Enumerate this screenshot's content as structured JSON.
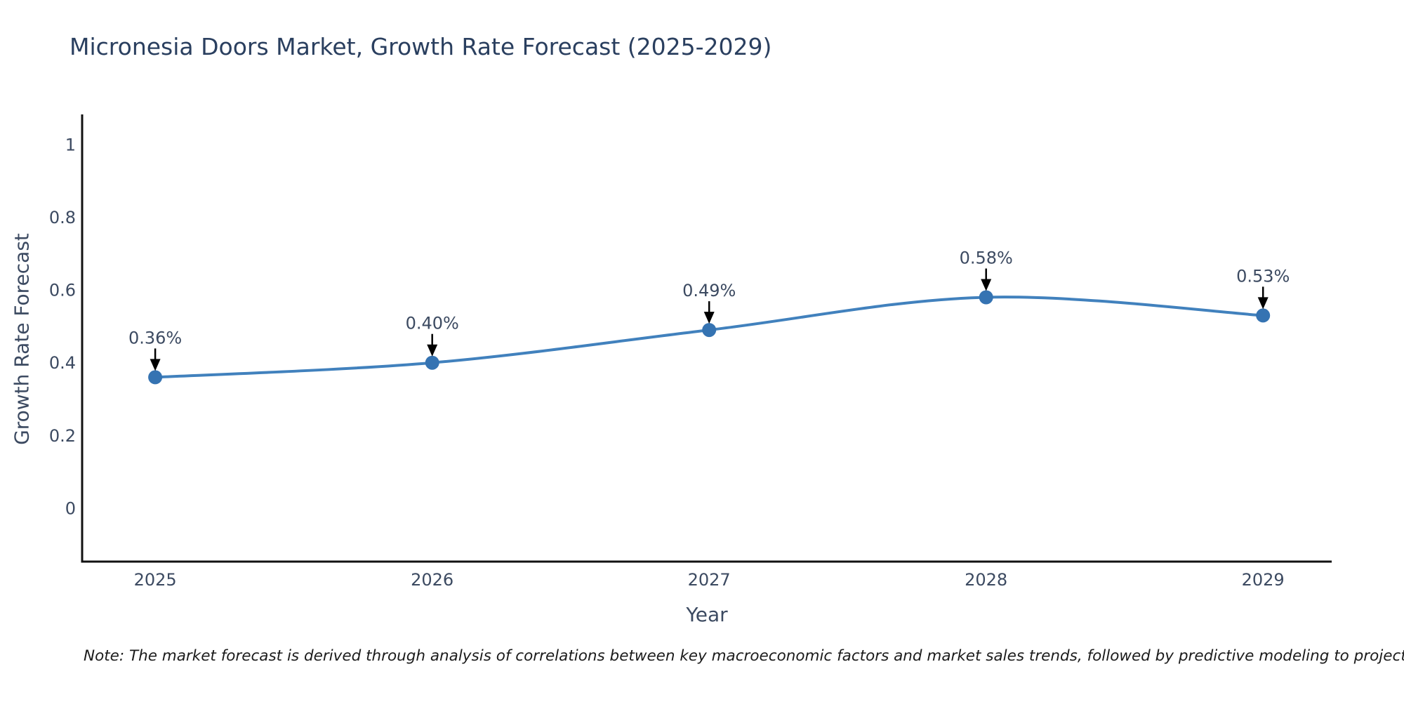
{
  "chart_data": {
    "type": "line",
    "title": "Micronesia Doors Market, Growth Rate Forecast (2025-2029)",
    "xlabel": "Year",
    "ylabel": "Growth Rate Forecast",
    "x": [
      2025,
      2026,
      2027,
      2028,
      2029
    ],
    "series": [
      {
        "name": "Growth Rate Forecast",
        "values": [
          0.36,
          0.4,
          0.49,
          0.58,
          0.53
        ]
      }
    ],
    "point_labels": [
      "0.36%",
      "0.40%",
      "0.49%",
      "0.58%",
      "0.53%"
    ],
    "x_tick_labels": [
      "2025",
      "2026",
      "2027",
      "2028",
      "2029"
    ],
    "y_tick_values": [
      0,
      0.2,
      0.4,
      0.6,
      0.8,
      1
    ],
    "y_tick_labels": [
      "0",
      "0.2",
      "0.4",
      "0.6",
      "0.8",
      "1"
    ],
    "xlim": [
      2024.736,
      2029.248
    ],
    "ylim": [
      -0.147,
      1.083
    ],
    "grid": false,
    "legend": "none",
    "line_shape": "spline",
    "colors": {
      "line": "#4181bd",
      "marker": "#3573b2",
      "arrow": "#000000",
      "axis_line": "#111111",
      "tick_text": "#3c4a61",
      "annotation_text": "#3c4a61",
      "title_text": "#2a3f5f",
      "note_text": "#1b1b1b"
    }
  },
  "note": {
    "text": "Note: The market forecast is derived through analysis of correlations between key macroeconomic factors and market sales trends, followed by predictive modeling to project future sales"
  }
}
